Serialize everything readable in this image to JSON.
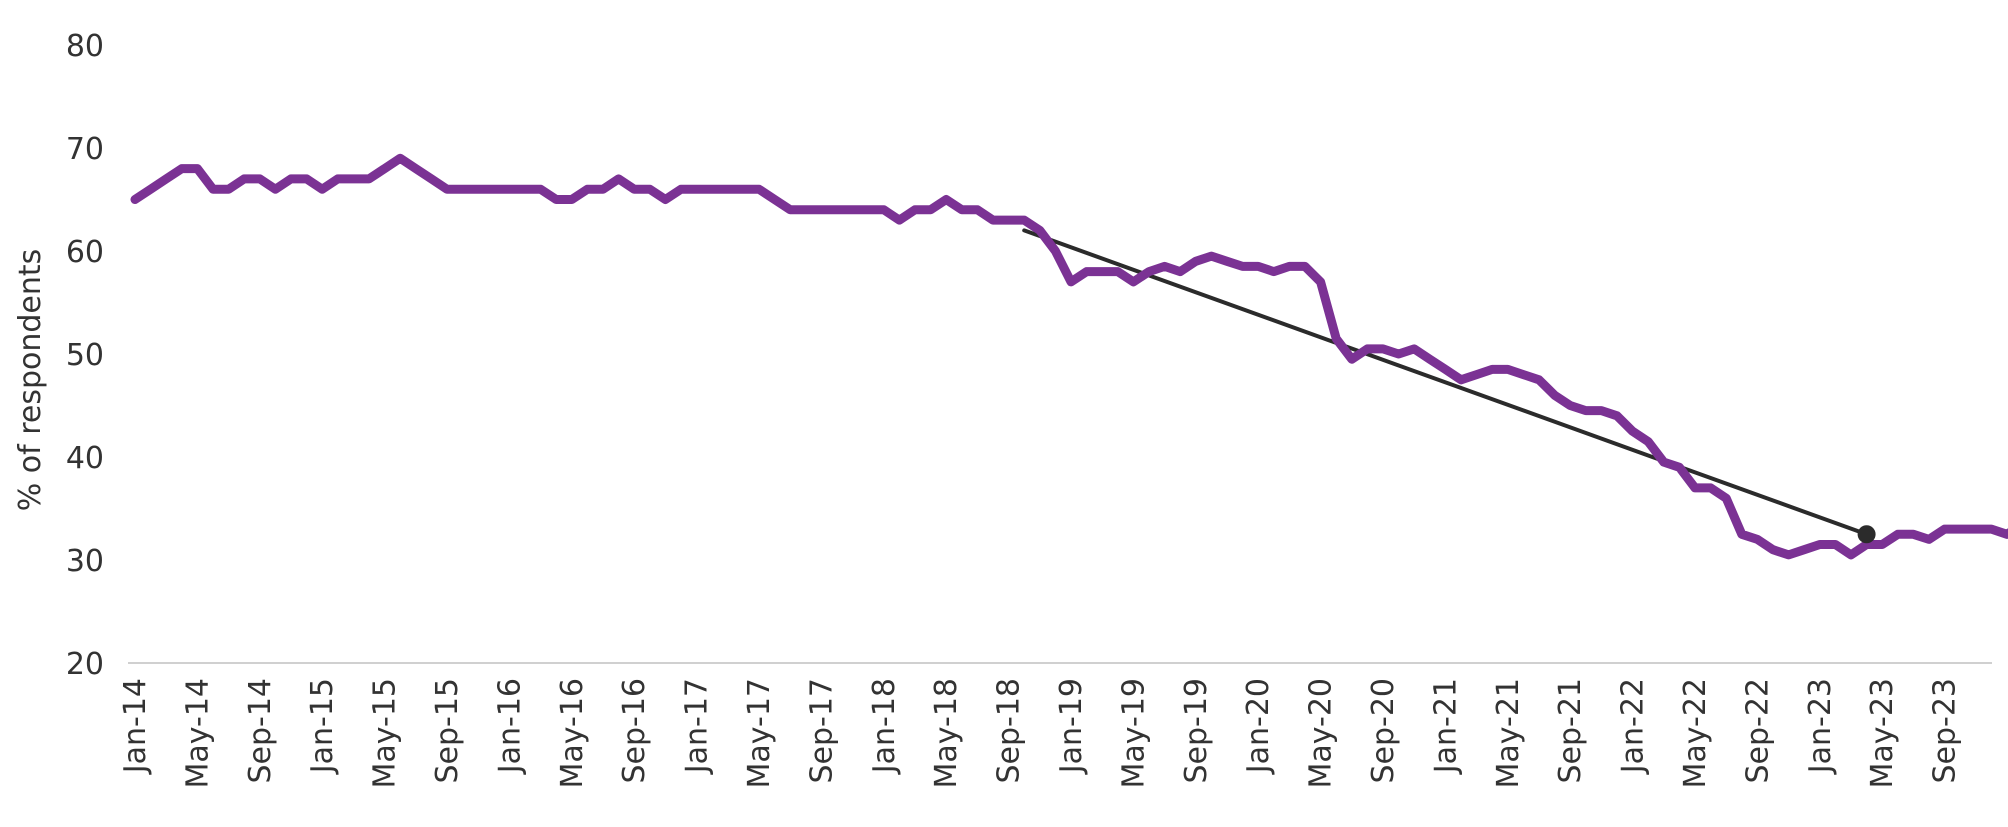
{
  "chart_data": {
    "type": "line",
    "title": "",
    "xlabel": "",
    "ylabel": "% of respondents",
    "ylim": [
      20,
      80
    ],
    "yticks": [
      20,
      30,
      40,
      50,
      60,
      70,
      80
    ],
    "xtick_labels": [
      "Jan-14",
      "May-14",
      "Sep-14",
      "Jan-15",
      "May-15",
      "Sep-15",
      "Jan-16",
      "May-16",
      "Sep-16",
      "Jan-17",
      "May-17",
      "Sep-17",
      "Jan-18",
      "May-18",
      "Sep-18",
      "Jan-19",
      "May-19",
      "Sep-19",
      "Jan-20",
      "May-20",
      "Sep-20",
      "Jan-21",
      "May-21",
      "Sep-21",
      "Jan-22",
      "May-22",
      "Sep-22",
      "Jan-23",
      "May-23",
      "Sep-23"
    ],
    "grid": false,
    "legend": "none",
    "series": [
      {
        "start": "Jan-14",
        "frequency": "monthly",
        "color": "#7b3294",
        "values": [
          65,
          66,
          67,
          68,
          68,
          66,
          66,
          67,
          67,
          66,
          67,
          67,
          66,
          67,
          67,
          67,
          68,
          69,
          68,
          67,
          66,
          66,
          66,
          66,
          66,
          66,
          66,
          65,
          65,
          66,
          66,
          67,
          66,
          66,
          65,
          66,
          66,
          66,
          66,
          66,
          66,
          65,
          64,
          64,
          64,
          64,
          64,
          64,
          64,
          63,
          64,
          64,
          65,
          64,
          64,
          63,
          63,
          63,
          62,
          60,
          57,
          58,
          58,
          58,
          57,
          58,
          58.5,
          58,
          59,
          59.5,
          59,
          58.5,
          58.5,
          58,
          58.5,
          58.5,
          57,
          51.5,
          49.5,
          50.5,
          50.5,
          50,
          50.5,
          49.5,
          48.5,
          47.5,
          48,
          48.5,
          48.5,
          48,
          47.5,
          46,
          45,
          44.5,
          44.5,
          44,
          42.5,
          41.5,
          39.5,
          39,
          37,
          37,
          36,
          32.5,
          32,
          31,
          30.5,
          31,
          31.5,
          31.5,
          30.5,
          31.5,
          31.5,
          32.5,
          32.5,
          32,
          33,
          33,
          33,
          33,
          32.5,
          33.5
        ]
      },
      {
        "type": "trendline",
        "color": "#2b2b2b",
        "from": {
          "x": "Oct-18",
          "y": 62
        },
        "to": {
          "x": "Apr-23",
          "y": 32.5
        }
      }
    ],
    "marker": {
      "x": "Apr-23",
      "y": 32.5,
      "color": "#2b2b2b"
    }
  }
}
